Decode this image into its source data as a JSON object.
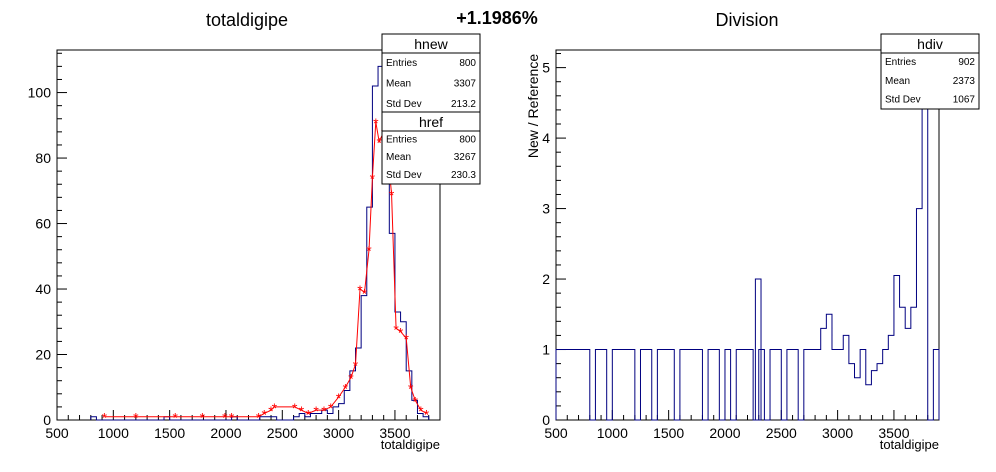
{
  "header": {
    "percent_change": "+1.1986%"
  },
  "colors": {
    "new": "#000080",
    "ref": "#ff0000",
    "div": "#000080",
    "axis": "#000000"
  },
  "chart_data": [
    {
      "type": "histogram",
      "title": "totaldigipe",
      "xlabel": "totaldigipe",
      "ylabel": "",
      "xlim": [
        500,
        3900
      ],
      "ylim": [
        0,
        113
      ],
      "x_ticks": [
        500,
        1000,
        1500,
        2000,
        2500,
        3000,
        3500
      ],
      "y_ticks": [
        0,
        20,
        40,
        60,
        80,
        100
      ],
      "bin_width": 50,
      "series": [
        {
          "name": "hnew",
          "style": "step",
          "points": [
            [
              800,
              1
            ],
            [
              1450,
              1
            ],
            [
              2050,
              1
            ],
            [
              2300,
              1
            ],
            [
              2350,
              1
            ],
            [
              2400,
              1
            ],
            [
              2600,
              1
            ],
            [
              2650,
              2
            ],
            [
              2700,
              1
            ],
            [
              2750,
              2
            ],
            [
              2800,
              2
            ],
            [
              2850,
              3
            ],
            [
              2900,
              2
            ],
            [
              2950,
              4
            ],
            [
              3000,
              5
            ],
            [
              3050,
              9
            ],
            [
              3100,
              15
            ],
            [
              3150,
              22
            ],
            [
              3200,
              38
            ],
            [
              3250,
              65
            ],
            [
              3300,
              102
            ],
            [
              3350,
              108
            ],
            [
              3400,
              100
            ],
            [
              3450,
              57
            ],
            [
              3500,
              33
            ],
            [
              3550,
              30
            ],
            [
              3600,
              15
            ],
            [
              3650,
              6
            ],
            [
              3700,
              2
            ],
            [
              3750,
              1
            ]
          ]
        },
        {
          "name": "href",
          "style": "markers",
          "points": [
            [
              920,
              1
            ],
            [
              1200,
              1
            ],
            [
              1550,
              1
            ],
            [
              1790,
              1
            ],
            [
              1990,
              1
            ],
            [
              2050,
              1
            ],
            [
              2290,
              1
            ],
            [
              2340,
              2
            ],
            [
              2400,
              3
            ],
            [
              2430,
              4
            ],
            [
              2610,
              4
            ],
            [
              2670,
              3
            ],
            [
              2730,
              2
            ],
            [
              2800,
              3
            ],
            [
              2870,
              3
            ],
            [
              2930,
              4
            ],
            [
              3000,
              7
            ],
            [
              3060,
              10
            ],
            [
              3110,
              13
            ],
            [
              3150,
              17
            ],
            [
              3190,
              40
            ],
            [
              3230,
              39
            ],
            [
              3270,
              52
            ],
            [
              3300,
              74
            ],
            [
              3330,
              91
            ],
            [
              3360,
              85
            ],
            [
              3400,
              88
            ],
            [
              3430,
              84
            ],
            [
              3470,
              69
            ],
            [
              3510,
              28
            ],
            [
              3550,
              27
            ],
            [
              3600,
              25
            ],
            [
              3640,
              10
            ],
            [
              3680,
              6
            ],
            [
              3730,
              3
            ],
            [
              3780,
              2
            ]
          ]
        }
      ],
      "stats": [
        {
          "name": "hnew",
          "rows": [
            {
              "label": "Entries",
              "value": "800"
            },
            {
              "label": "Mean",
              "value": "3307"
            },
            {
              "label": "Std Dev",
              "value": "213.2"
            }
          ]
        },
        {
          "name": "href",
          "rows": [
            {
              "label": "Entries",
              "value": "800"
            },
            {
              "label": "Mean",
              "value": "3267"
            },
            {
              "label": "Std Dev",
              "value": "230.3"
            }
          ]
        }
      ]
    },
    {
      "type": "histogram",
      "title": "Division",
      "xlabel": "totaldigipe",
      "ylabel": "New / Reference",
      "xlim": [
        500,
        3900
      ],
      "ylim": [
        0,
        5.25
      ],
      "x_ticks": [
        500,
        1000,
        1500,
        2000,
        2500,
        3000,
        3500
      ],
      "y_ticks": [
        0,
        1,
        2,
        3,
        4,
        5
      ],
      "bin_width": 50,
      "series": [
        {
          "name": "hdiv",
          "style": "step",
          "points": [
            [
              500,
              1
            ],
            [
              550,
              1
            ],
            [
              600,
              1
            ],
            [
              650,
              1
            ],
            [
              700,
              1
            ],
            [
              750,
              1
            ],
            [
              800,
              0
            ],
            [
              850,
              1
            ],
            [
              900,
              1
            ],
            [
              950,
              0
            ],
            [
              1000,
              1
            ],
            [
              1050,
              1
            ],
            [
              1100,
              1
            ],
            [
              1150,
              1
            ],
            [
              1200,
              0
            ],
            [
              1250,
              1
            ],
            [
              1300,
              1
            ],
            [
              1350,
              0
            ],
            [
              1400,
              1
            ],
            [
              1450,
              1
            ],
            [
              1500,
              1
            ],
            [
              1550,
              0
            ],
            [
              1600,
              1
            ],
            [
              1650,
              1
            ],
            [
              1700,
              1
            ],
            [
              1750,
              1
            ],
            [
              1800,
              0
            ],
            [
              1850,
              1
            ],
            [
              1900,
              1
            ],
            [
              1950,
              0
            ],
            [
              2000,
              1
            ],
            [
              2050,
              0
            ],
            [
              2100,
              1
            ],
            [
              2150,
              1
            ],
            [
              2200,
              1
            ],
            [
              2250,
              0
            ],
            [
              2270,
              2
            ],
            [
              2300,
              1
            ],
            [
              2350,
              0
            ],
            [
              2400,
              1
            ],
            [
              2450,
              1
            ],
            [
              2500,
              0
            ],
            [
              2550,
              1
            ],
            [
              2600,
              1
            ],
            [
              2650,
              0
            ],
            [
              2700,
              1
            ],
            [
              2750,
              1
            ],
            [
              2800,
              1
            ],
            [
              2850,
              1.3
            ],
            [
              2900,
              1.5
            ],
            [
              2950,
              1
            ],
            [
              3000,
              1
            ],
            [
              3050,
              1.2
            ],
            [
              3100,
              0.8
            ],
            [
              3150,
              0.6
            ],
            [
              3200,
              1
            ],
            [
              3250,
              0.5
            ],
            [
              3300,
              0.7
            ],
            [
              3350,
              0.8
            ],
            [
              3400,
              1
            ],
            [
              3450,
              1.2
            ],
            [
              3500,
              2.05
            ],
            [
              3550,
              1.6
            ],
            [
              3600,
              1.3
            ],
            [
              3650,
              1.6
            ],
            [
              3700,
              3
            ],
            [
              3750,
              5.0
            ],
            [
              3800,
              0
            ],
            [
              3850,
              1
            ]
          ]
        }
      ],
      "stats": [
        {
          "name": "hdiv",
          "rows": [
            {
              "label": "Entries",
              "value": "902"
            },
            {
              "label": "Mean",
              "value": "2373"
            },
            {
              "label": "Std Dev",
              "value": "1067"
            }
          ]
        }
      ]
    }
  ]
}
